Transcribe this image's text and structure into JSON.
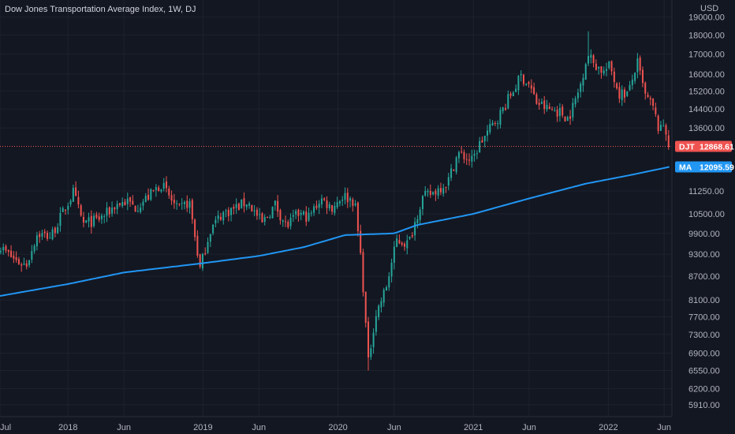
{
  "title": "Dow Jones Transportation Average Index, 1W, DJ",
  "currency": "USD",
  "colors": {
    "background": "#131722",
    "grid": "#1e222d",
    "up": "#26a69a",
    "down": "#ef5350",
    "ma": "#2196f3",
    "text": "#b2b5be"
  },
  "chart_data": {
    "type": "candlestick",
    "title": "Dow Jones Transportation Average Index, 1W, DJ",
    "ylabel": "USD",
    "y_scale": "log",
    "ylim": [
      5700,
      20000
    ],
    "xlim": [
      "2017-07-01",
      "2022-06-22"
    ],
    "y_ticks": [
      "19000.00",
      "18000.00",
      "17000.00",
      "16000.00",
      "15200.00",
      "14400.00",
      "13600.00",
      "11250.00",
      "10500.00",
      "9900.00",
      "9300.00",
      "8700.00",
      "8100.00",
      "7700.00",
      "7300.00",
      "6900.00",
      "6550.00",
      "6200.00",
      "5910.00"
    ],
    "x_ticks": [
      {
        "label": "Jul",
        "date": "2017-07-01"
      },
      {
        "label": "2018",
        "date": "2018-01-01"
      },
      {
        "label": "Jun",
        "date": "2018-06-01"
      },
      {
        "label": "2019",
        "date": "2019-01-01"
      },
      {
        "label": "Jun",
        "date": "2019-06-01"
      },
      {
        "label": "2020",
        "date": "2020-01-01"
      },
      {
        "label": "Jun",
        "date": "2020-06-01"
      },
      {
        "label": "2021",
        "date": "2021-01-01"
      },
      {
        "label": "Jun",
        "date": "2021-06-01"
      },
      {
        "label": "2022",
        "date": "2022-01-01"
      },
      {
        "label": "Jun",
        "date": "2022-06-01"
      }
    ],
    "price_path": [
      [
        "2017-07-01",
        9500
      ],
      [
        "2017-08-15",
        9100
      ],
      [
        "2017-09-10",
        9000
      ],
      [
        "2017-10-10",
        9900
      ],
      [
        "2017-11-15",
        9800
      ],
      [
        "2018-01-15",
        11200
      ],
      [
        "2018-02-10",
        10200
      ],
      [
        "2018-03-20",
        10300
      ],
      [
        "2018-04-15",
        10500
      ],
      [
        "2018-05-10",
        10800
      ],
      [
        "2018-06-10",
        10900
      ],
      [
        "2018-07-01",
        10700
      ],
      [
        "2018-08-01",
        11000
      ],
      [
        "2018-09-10",
        11500
      ],
      [
        "2018-10-25",
        10600
      ],
      [
        "2018-11-25",
        10900
      ],
      [
        "2018-12-24",
        8900
      ],
      [
        "2019-01-20",
        10000
      ],
      [
        "2019-02-20",
        10500
      ],
      [
        "2019-04-01",
        10700
      ],
      [
        "2019-05-01",
        10900
      ],
      [
        "2019-06-10",
        10200
      ],
      [
        "2019-07-15",
        10800
      ],
      [
        "2019-08-15",
        10100
      ],
      [
        "2019-09-15",
        10500
      ],
      [
        "2019-10-15",
        10400
      ],
      [
        "2019-11-15",
        11000
      ],
      [
        "2019-12-15",
        10700
      ],
      [
        "2020-01-15",
        11100
      ],
      [
        "2020-02-15",
        10900
      ],
      [
        "2020-03-05",
        9000
      ],
      [
        "2020-03-23",
        6700
      ],
      [
        "2020-04-10",
        7700
      ],
      [
        "2020-05-10",
        8400
      ],
      [
        "2020-06-08",
        9700
      ],
      [
        "2020-07-10",
        9600
      ],
      [
        "2020-08-15",
        11000
      ],
      [
        "2020-09-15",
        11200
      ],
      [
        "2020-10-25",
        11600
      ],
      [
        "2020-11-20",
        12600
      ],
      [
        "2020-12-30",
        12300
      ],
      [
        "2021-01-15",
        12900
      ],
      [
        "2021-03-15",
        14200
      ],
      [
        "2021-05-10",
        15900
      ],
      [
        "2021-06-01",
        15500
      ],
      [
        "2021-06-20",
        14700
      ],
      [
        "2021-07-20",
        14400
      ],
      [
        "2021-08-20",
        14300
      ],
      [
        "2021-09-15",
        14000
      ],
      [
        "2021-10-15",
        15300
      ],
      [
        "2021-11-05",
        17000
      ],
      [
        "2021-11-25",
        16500
      ],
      [
        "2021-12-20",
        16100
      ],
      [
        "2022-01-05",
        16400
      ],
      [
        "2022-01-30",
        15100
      ],
      [
        "2022-02-25",
        15100
      ],
      [
        "2022-03-20",
        16600
      ],
      [
        "2022-04-10",
        15000
      ],
      [
        "2022-05-01",
        14500
      ],
      [
        "2022-05-20",
        13400
      ],
      [
        "2022-06-01",
        13800
      ],
      [
        "2022-06-15",
        12869
      ]
    ],
    "candle_wick_notes": [
      {
        "date": "2021-11-08",
        "high": 18200
      },
      {
        "date": "2020-03-23",
        "low": 6550
      }
    ],
    "ma_path": [
      [
        "2017-07-01",
        8200
      ],
      [
        "2018-01-01",
        8500
      ],
      [
        "2018-06-01",
        8800
      ],
      [
        "2019-01-01",
        9050
      ],
      [
        "2019-06-01",
        9250
      ],
      [
        "2019-10-01",
        9500
      ],
      [
        "2020-01-20",
        9850
      ],
      [
        "2020-06-01",
        9900
      ],
      [
        "2020-08-01",
        10150
      ],
      [
        "2021-01-01",
        10500
      ],
      [
        "2021-06-01",
        11000
      ],
      [
        "2021-11-01",
        11500
      ],
      [
        "2022-03-01",
        11800
      ],
      [
        "2022-06-15",
        12095.59
      ]
    ],
    "last_price": {
      "label": "DJT",
      "value": "12868.61",
      "number": 12868.61
    },
    "ma_value": {
      "label": "MA",
      "value": "12095.59",
      "number": 12095.59
    }
  }
}
